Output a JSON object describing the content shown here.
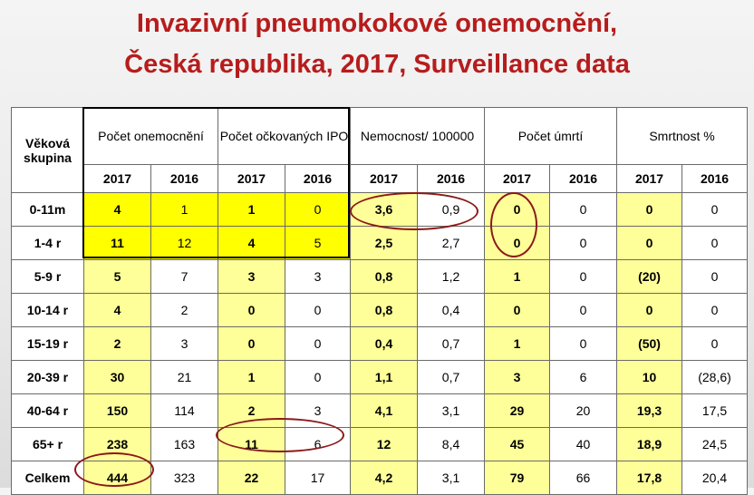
{
  "title": {
    "line1": "Invazivní pneumokokové onemocnění,",
    "line2": "Česká republika, 2017, Surveillance data"
  },
  "table": {
    "age_header": "Věková skupina",
    "groups": [
      "Počet onemocnění",
      "Počet očkovaných IPO",
      "Nemocnost/ 100000",
      "Počet úmrtí",
      "Smrtnost %"
    ],
    "years": [
      "2017",
      "2016",
      "2017",
      "2016",
      "2017",
      "2016",
      "2017",
      "2016",
      "2017",
      "2016"
    ],
    "rows": [
      {
        "age": "0-11m",
        "cells": [
          "4",
          "1",
          "1",
          "0",
          "3,6",
          "0,9",
          "0",
          "0",
          "0",
          "0"
        ]
      },
      {
        "age": "1-4 r",
        "cells": [
          "11",
          "12",
          "4",
          "5",
          "2,5",
          "2,7",
          "0",
          "0",
          "0",
          "0"
        ]
      },
      {
        "age": "5-9 r",
        "cells": [
          "5",
          "7",
          "3",
          "3",
          "0,8",
          "1,2",
          "1",
          "0",
          "(20)",
          "0"
        ]
      },
      {
        "age": "10-14 r",
        "cells": [
          "4",
          "2",
          "0",
          "0",
          "0,8",
          "0,4",
          "0",
          "0",
          "0",
          "0"
        ]
      },
      {
        "age": "15-19 r",
        "cells": [
          "2",
          "3",
          "0",
          "0",
          "0,4",
          "0,7",
          "1",
          "0",
          "(50)",
          "0"
        ]
      },
      {
        "age": "20-39 r",
        "cells": [
          "30",
          "21",
          "1",
          "0",
          "1,1",
          "0,7",
          "3",
          "6",
          "10",
          "(28,6)"
        ]
      },
      {
        "age": "40-64 r",
        "cells": [
          "150",
          "114",
          "2",
          "3",
          "4,1",
          "3,1",
          "29",
          "20",
          "19,3",
          "17,5"
        ]
      },
      {
        "age": "65+ r",
        "cells": [
          "238",
          "163",
          "11",
          "6",
          "12",
          "8,4",
          "45",
          "40",
          "18,9",
          "24,5"
        ]
      },
      {
        "age": "Celkem",
        "cells": [
          "444",
          "323",
          "22",
          "17",
          "4,2",
          "3,1",
          "79",
          "66",
          "17,8",
          "20,4"
        ]
      }
    ]
  },
  "colors": {
    "title": "#b71c1c",
    "highlight_light": "#ffff99",
    "highlight_strong": "#ffff00",
    "annotation_ellipse": "#8b1a1a"
  }
}
